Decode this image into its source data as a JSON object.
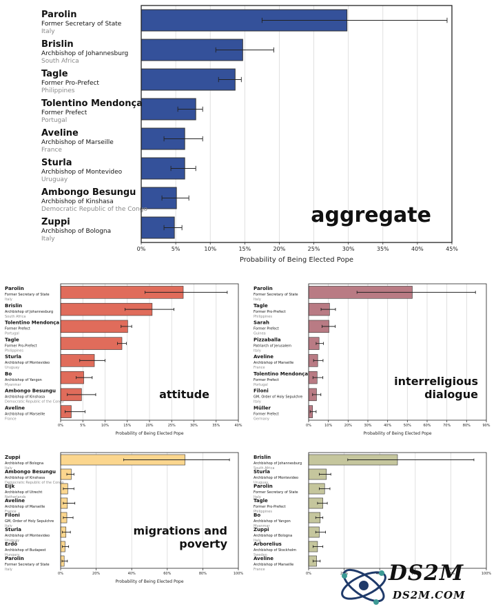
{
  "chart_data": [
    {
      "type": "bar",
      "orientation": "horizontal",
      "corner_label": "aggregate",
      "xlabel": "Probability of Being Elected Pope",
      "xlim": [
        0,
        45
      ],
      "xticks": [
        "0%",
        "5%",
        "10%",
        "15%",
        "20%",
        "25%",
        "30%",
        "35%",
        "40%",
        "45%"
      ],
      "grid": true,
      "color": "#34519a",
      "categories": [
        {
          "name": "Parolin",
          "title": "Former Secretary of State",
          "country": "Italy",
          "value": 29.8,
          "err_low": 17.5,
          "err_high": 44.3
        },
        {
          "name": "Brislin",
          "title": "Archbishop of Johannesburg",
          "country": "South Africa",
          "value": 14.7,
          "err_low": 10.8,
          "err_high": 19.2
        },
        {
          "name": "Tagle",
          "title": "Former Pro-Prefect",
          "country": "Philippines",
          "value": 13.6,
          "err_low": 11.2,
          "err_high": 14.5
        },
        {
          "name": "Tolentino Mendonça",
          "title": "Former Prefect",
          "country": "Portugal",
          "value": 7.9,
          "err_low": 5.3,
          "err_high": 8.9
        },
        {
          "name": "Aveline",
          "title": "Archbishop of Marseille",
          "country": "France",
          "value": 6.3,
          "err_low": 3.3,
          "err_high": 8.9
        },
        {
          "name": "Sturla",
          "title": "Archbishop of Montevideo",
          "country": "Uruguay",
          "value": 6.3,
          "err_low": 4.3,
          "err_high": 7.9
        },
        {
          "name": "Ambongo Besungu",
          "title": "Archbishop of Kinshasa",
          "country": "Democratic Republic of the Congo",
          "value": 5.1,
          "err_low": 3.0,
          "err_high": 6.9
        },
        {
          "name": "Zuppi",
          "title": "Archbishop of Bologna",
          "country": "Italy",
          "value": 4.8,
          "err_low": 3.3,
          "err_high": 5.9
        }
      ]
    },
    {
      "type": "bar",
      "orientation": "horizontal",
      "corner_label": "attitude",
      "xlabel": "Probability of Being Elected Pope",
      "xlim": [
        0,
        40
      ],
      "xticks": [
        "0%",
        "5%",
        "10%",
        "15%",
        "20%",
        "25%",
        "30%",
        "35%",
        "40%"
      ],
      "grid": true,
      "color": "#e06c5b",
      "categories": [
        {
          "name": "Parolin",
          "title": "Former Secretary of State",
          "country": "Italy",
          "value": 27.6,
          "err_low": 19.0,
          "err_high": 37.5
        },
        {
          "name": "Brislin",
          "title": "Archbishop of Johannesburg",
          "country": "South Africa",
          "value": 20.6,
          "err_low": 14.5,
          "err_high": 25.5
        },
        {
          "name": "Tolentino Mendonça",
          "title": "Former Prefect",
          "country": "Portugal",
          "value": 15.1,
          "err_low": 13.6,
          "err_high": 16.0
        },
        {
          "name": "Tagle",
          "title": "Former Pro-Prefect",
          "country": "Philippines",
          "value": 13.8,
          "err_low": 12.8,
          "err_high": 14.8
        },
        {
          "name": "Sturla",
          "title": "Archbishop of Montevideo",
          "country": "Uruguay",
          "value": 7.6,
          "err_low": 4.3,
          "err_high": 10.0
        },
        {
          "name": "Bo",
          "title": "Archbishop of Yangon",
          "country": "Myanmar",
          "value": 5.2,
          "err_low": 3.5,
          "err_high": 7.1
        },
        {
          "name": "Ambongo Besungu",
          "title": "Archbishop of Kinshasa",
          "country": "Democratic Republic of the Congo",
          "value": 4.7,
          "err_low": 1.5,
          "err_high": 7.9
        },
        {
          "name": "Aveline",
          "title": "Archbishop of Marseille",
          "country": "France",
          "value": 2.4,
          "err_low": 1.0,
          "err_high": 5.5
        }
      ]
    },
    {
      "type": "bar",
      "orientation": "horizontal",
      "corner_label": "interreligious dialogue",
      "xlabel": "Probability of Being Elected Pope",
      "xlim": [
        0,
        90
      ],
      "xticks": [
        "0%",
        "10%",
        "20%",
        "30%",
        "40%",
        "50%",
        "60%",
        "70%",
        "80%",
        "90%"
      ],
      "grid": true,
      "color": "#b97b84",
      "categories": [
        {
          "name": "Parolin",
          "title": "Former Secretary of State",
          "country": "Italy",
          "value": 52.5,
          "err_low": 24.5,
          "err_high": 84.5
        },
        {
          "name": "Tagle",
          "title": "Former Pro-Prefect",
          "country": "Philippines",
          "value": 10.6,
          "err_low": 6.3,
          "err_high": 13.6
        },
        {
          "name": "Sarah",
          "title": "Former Prefect",
          "country": "Guinea",
          "value": 10.3,
          "err_low": 6.8,
          "err_high": 13.5
        },
        {
          "name": "Pizzaballa",
          "title": "Patriarch of Jerusalem",
          "country": "Italy",
          "value": 5.3,
          "err_low": 3.8,
          "err_high": 7.5
        },
        {
          "name": "Aveline",
          "title": "Archbishop of Marseille",
          "country": "France",
          "value": 4.6,
          "err_low": 2.5,
          "err_high": 7.3
        },
        {
          "name": "Tolentino Mendonça",
          "title": "Former Prefect",
          "country": "Portugal",
          "value": 4.3,
          "err_low": 2.2,
          "err_high": 7.2
        },
        {
          "name": "Filoni",
          "title": "GM, Order of Holy Sepulchre",
          "country": "Italy",
          "value": 4.0,
          "err_low": 2.0,
          "err_high": 6.2
        },
        {
          "name": "Müller",
          "title": "Former Prefect",
          "country": "Germany",
          "value": 2.0,
          "err_low": 0.8,
          "err_high": 3.8
        }
      ]
    },
    {
      "type": "bar",
      "orientation": "horizontal",
      "corner_label": "migrations and poverty",
      "xlabel": "Probability of Being Elected Pope",
      "xlim": [
        0,
        100
      ],
      "xticks": [
        "0%",
        "20%",
        "40%",
        "60%",
        "80%",
        "100%"
      ],
      "grid": true,
      "color": "#fbd68e",
      "categories": [
        {
          "name": "Zuppi",
          "title": "Archbishop of Bologna",
          "country": "Italy",
          "value": 70.0,
          "err_low": 35.5,
          "err_high": 95.0
        },
        {
          "name": "Ambongo Besungu",
          "title": "Archbishop of Kinshasa",
          "country": "Democratic Republic of the Congo",
          "value": 6.0,
          "err_low": 3.5,
          "err_high": 7.5
        },
        {
          "name": "Eijk",
          "title": "Archbishop of Utrecht",
          "country": "Netherlands",
          "value": 4.0,
          "err_low": 1.5,
          "err_high": 7.5
        },
        {
          "name": "Aveline",
          "title": "Archbishop of Marseille",
          "country": "France",
          "value": 3.8,
          "err_low": 1.5,
          "err_high": 8.0
        },
        {
          "name": "Filoni",
          "title": "GM, Order of Holy Sepulchre",
          "country": "Italy",
          "value": 3.5,
          "err_low": 1.5,
          "err_high": 7.0
        },
        {
          "name": "Sturla",
          "title": "Archbishop of Montevideo",
          "country": "Uruguay",
          "value": 3.0,
          "err_low": 1.0,
          "err_high": 5.5
        },
        {
          "name": "Erdő",
          "title": "Archbishop of Budapest",
          "country": "Hungary",
          "value": 2.5,
          "err_low": 1.0,
          "err_high": 4.5
        },
        {
          "name": "Parolin",
          "title": "Former Secretary of State",
          "country": "Italy",
          "value": 2.0,
          "err_low": 0.8,
          "err_high": 3.8
        }
      ]
    },
    {
      "type": "bar",
      "orientation": "horizontal",
      "corner_label": "",
      "xlabel": "",
      "xlim": [
        0,
        100
      ],
      "xticks": [
        "0%",
        "20%",
        "40%",
        "60%",
        "80%",
        "100%"
      ],
      "grid": true,
      "color": "#c5c69d",
      "categories": [
        {
          "name": "Brislin",
          "title": "Archbishop of Johannesburg",
          "country": "South Africa",
          "value": 50.0,
          "err_low": 22.0,
          "err_high": 93.0
        },
        {
          "name": "Sturla",
          "title": "Archbishop of Montevideo",
          "country": "Uruguay",
          "value": 10.0,
          "err_low": 6.0,
          "err_high": 12.5
        },
        {
          "name": "Parolin",
          "title": "Former Secretary of State",
          "country": "Italy",
          "value": 9.0,
          "err_low": 6.0,
          "err_high": 12.0
        },
        {
          "name": "Tagle",
          "title": "Former Pro-Prefect",
          "country": "Philippines",
          "value": 8.0,
          "err_low": 5.0,
          "err_high": 10.5
        },
        {
          "name": "Bo",
          "title": "Archbishop of Yangon",
          "country": "Myanmar",
          "value": 6.5,
          "err_low": 4.0,
          "err_high": 8.0
        },
        {
          "name": "Zuppi",
          "title": "Archbishop of Bologna",
          "country": "Italy",
          "value": 6.0,
          "err_low": 4.0,
          "err_high": 9.5
        },
        {
          "name": "Arborelius",
          "title": "Archbishop of Stockholm",
          "country": "Sweden",
          "value": 5.0,
          "err_low": 2.5,
          "err_high": 8.0
        },
        {
          "name": "Aveline",
          "title": "Archbishop of Marseille",
          "country": "France",
          "value": 4.5,
          "err_low": 2.5,
          "err_high": 6.5
        }
      ]
    }
  ],
  "watermark": {
    "main": "DS2M",
    "sub": "DS2M.COM"
  }
}
